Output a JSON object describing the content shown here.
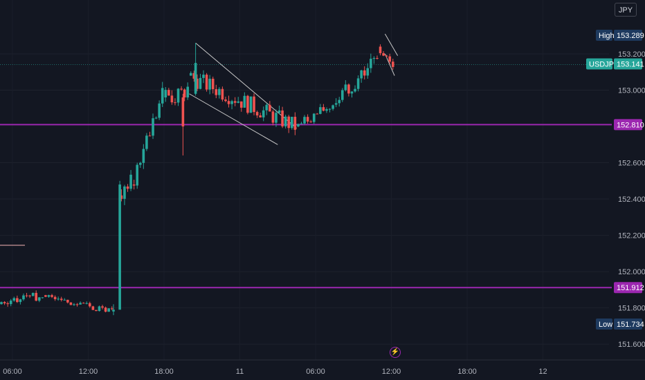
{
  "currency": "JPY",
  "symbol": "USDJPY",
  "colors": {
    "background": "#131722",
    "up": "#26a69a",
    "down": "#ef5350",
    "level_line": "#9c27b0",
    "trend_line": "#c9c9c9",
    "text": "#b2b5be"
  },
  "chart_data": {
    "type": "candlestick",
    "yaxis": {
      "ticks": [
        "153.200",
        "153.000",
        "152.600",
        "152.400",
        "152.200",
        "152.000",
        "151.800",
        "151.600"
      ],
      "tick_values": [
        153.2,
        153.0,
        152.6,
        152.4,
        152.2,
        152.0,
        151.8,
        151.6
      ],
      "ylim": [
        151.55,
        153.47
      ]
    },
    "xaxis": {
      "ticks": [
        "06:00",
        "12:00",
        "18:00",
        "11",
        "06:00",
        "12:00",
        "18:00",
        "12"
      ]
    },
    "price_tags": {
      "high": {
        "label": "High",
        "value": "153.289"
      },
      "current": {
        "label": "USDJPY",
        "value": "153.141"
      },
      "level_upper": {
        "value": "152.810"
      },
      "level_lower": {
        "value": "151.912"
      },
      "low": {
        "label": "Low",
        "value": "151.734"
      }
    },
    "horizontal_levels": [
      152.81,
      151.912
    ],
    "trend_lines": [
      {
        "from": [
          "10 20:30",
          153.26
        ],
        "to": [
          "11 04:30",
          152.79
        ]
      },
      {
        "from": [
          "10 20:00",
          152.98
        ],
        "to": [
          "11 03:00",
          152.7
        ]
      },
      {
        "from": [
          "11 11:30",
          153.31
        ],
        "to": [
          "11 12:30",
          153.19
        ]
      },
      {
        "from": [
          "11 11:30",
          153.2
        ],
        "to": [
          "11 12:15",
          153.08
        ]
      }
    ],
    "candle_segments": [
      {
        "start": "10 00:00",
        "end": "10 08:30",
        "from": 151.74,
        "to": 151.87,
        "wiggle": 0.025,
        "seed": 1
      },
      {
        "start": "10 08:30",
        "end": "10 14:00",
        "from": 151.87,
        "to": 151.78,
        "wiggle": 0.02,
        "seed": 2
      },
      {
        "start": "10 14:30",
        "end": "10 15:30",
        "from": 152.42,
        "to": 152.48,
        "wiggle": 0.06,
        "seed": 3
      },
      {
        "start": "10 15:30",
        "end": "10 18:00",
        "from": 152.48,
        "to": 152.96,
        "wiggle": 0.06,
        "seed": 4
      },
      {
        "start": "10 18:00",
        "end": "10 20:00",
        "from": 152.96,
        "to": 152.98,
        "wiggle": 0.05,
        "seed": 5
      },
      {
        "start": "10 20:00",
        "end": "11 04:30",
        "from": 153.08,
        "to": 152.8,
        "wiggle": 0.05,
        "seed": 6
      },
      {
        "start": "11 04:30",
        "end": "11 07:30",
        "from": 152.8,
        "to": 152.92,
        "wiggle": 0.03,
        "seed": 7
      },
      {
        "start": "11 07:30",
        "end": "11 11:00",
        "from": 152.92,
        "to": 153.18,
        "wiggle": 0.05,
        "seed": 8
      },
      {
        "start": "11 11:00",
        "end": "11 12:15",
        "from": 153.24,
        "to": 153.14,
        "wiggle": 0.03,
        "seed": 9
      }
    ],
    "special_candles": [
      {
        "time": "10 14:00",
        "open": 151.78,
        "high": 151.82,
        "low": 151.76,
        "close": 151.79
      },
      {
        "time": "10 14:30",
        "open": 151.79,
        "high": 152.5,
        "low": 151.99,
        "close": 152.48
      },
      {
        "time": "10 19:30",
        "open": 152.96,
        "high": 152.98,
        "low": 152.64,
        "close": 152.8
      },
      {
        "time": "10 20:30",
        "open": 152.98,
        "high": 153.26,
        "low": 152.97,
        "close": 153.15
      }
    ]
  }
}
